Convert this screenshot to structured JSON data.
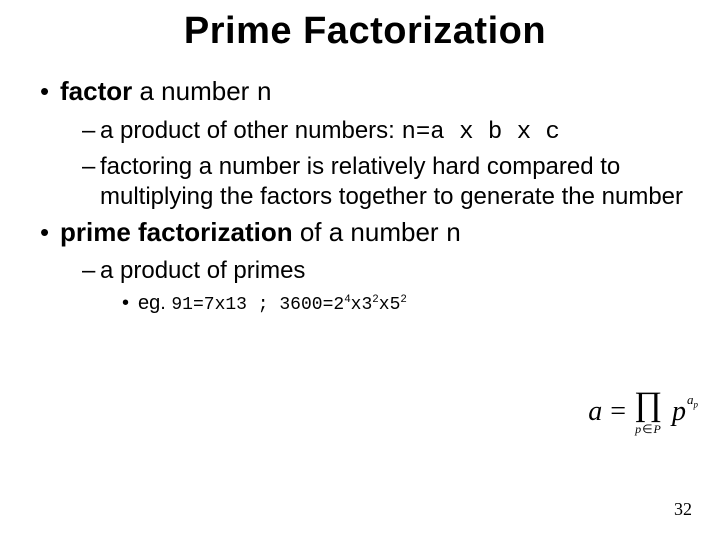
{
  "title": "Prime Factorization",
  "bullets": {
    "b1": {
      "bold": "factor",
      "rest": " a number ",
      "code": "n"
    },
    "b1s1": {
      "lead": "a product of other numbers: ",
      "code": "n=a x b x c"
    },
    "b1s2": "factoring a number is relatively hard compared to multiplying the factors together to generate the number",
    "b2": {
      "bold": "prime factorization",
      "rest": " of a number ",
      "code": "n"
    },
    "b2s1": "a product of primes",
    "b2s1e": {
      "lead": "eg. ",
      "ex1a": "91=7x13 ; 3600=2",
      "sup1": "4",
      "mid1": "x3",
      "sup2": "2",
      "mid2": "x5",
      "sup3": "2"
    }
  },
  "formula": {
    "lhs": "a",
    "eq": "=",
    "pi": "∏",
    "subvar": "p",
    "subin": "∈",
    "subset": "P",
    "base": "p",
    "expvar": "a",
    "expsub": "p"
  },
  "page": "32",
  "colors": {
    "text": "#000000",
    "bg": "#ffffff"
  }
}
